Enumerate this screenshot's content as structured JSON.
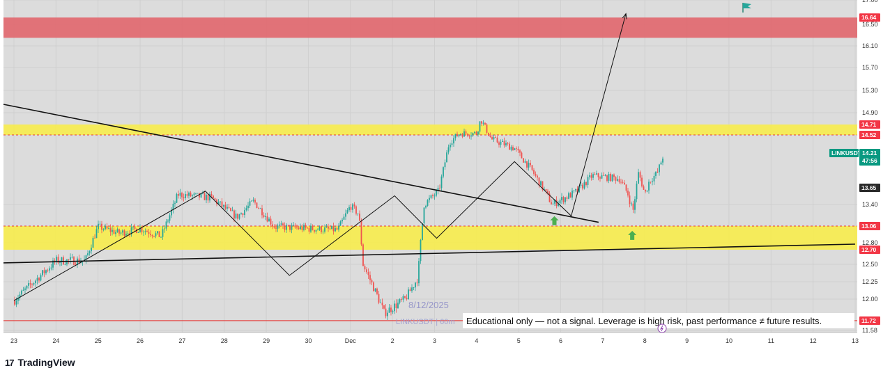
{
  "brand": {
    "logo_text": "TradingView",
    "logo_mark": "17"
  },
  "watermark": {
    "date": "8/12/2025",
    "symbol": "LINKUSDT | 60m"
  },
  "disclaimer": "Educational only — not a signal. Leverage is high risk, past performance ≠ future results.",
  "colors": {
    "background": "#dcdcdc",
    "red_zone": "#e06c72",
    "yellow_zone": "#f7ec4c",
    "up": "#26a69a",
    "down": "#ef5350",
    "line": "#111111",
    "tag_red": "#f23645",
    "tag_teal": "#089981",
    "tag_dark": "#2a2a2a",
    "arrow_green": "#4caf50",
    "flag": "#26a69a"
  },
  "chart_data": {
    "type": "candlestick",
    "symbol": "LINKUSDT",
    "timeframe": "60m",
    "x_ticks": [
      "23",
      "24",
      "25",
      "26",
      "27",
      "28",
      "29",
      "30",
      "Dec",
      "2",
      "3",
      "4",
      "5",
      "6",
      "7",
      "8",
      "9",
      "10",
      "11",
      "12",
      "13"
    ],
    "y_ticks": [
      17.0,
      16.5,
      16.1,
      15.7,
      15.3,
      14.9,
      13.4,
      12.8,
      12.5,
      12.25,
      12.0,
      11.58
    ],
    "y_tick_labels": [
      "17.00",
      "16.50",
      "16.10",
      "15.70",
      "15.30",
      "14.90",
      "13.40",
      "12.80",
      "12.50",
      "12.25",
      "12.00",
      "11.58"
    ],
    "price_tags": [
      {
        "label": "16.64",
        "value": 16.64,
        "style": "red"
      },
      {
        "label": "14.71",
        "value": 14.71,
        "style": "red"
      },
      {
        "label": "14.52",
        "value": 14.52,
        "style": "red"
      },
      {
        "label": "13.65",
        "value": 13.65,
        "style": "dark"
      },
      {
        "label": "13.06",
        "value": 13.06,
        "style": "red"
      },
      {
        "label": "12.70",
        "value": 12.7,
        "style": "red"
      },
      {
        "label": "11.72",
        "value": 11.72,
        "style": "red"
      }
    ],
    "current_price": {
      "symbol": "LINKUSDT",
      "price": "14.21",
      "countdown": "47:56",
      "value": 14.21
    },
    "zones": [
      {
        "kind": "supply",
        "low": 16.25,
        "high": 16.64
      },
      {
        "kind": "resistance",
        "low": 14.52,
        "high": 14.71
      },
      {
        "kind": "support",
        "low": 12.7,
        "high": 13.06
      }
    ],
    "dashed_levels": [
      14.52,
      13.06
    ],
    "solid_levels": [
      11.72
    ],
    "trendlines": [
      {
        "from": [
          "23",
          15.05
        ],
        "to": [
          "6.9",
          13.12
        ]
      },
      {
        "from": [
          "23",
          12.52
        ],
        "to": [
          "13",
          12.78
        ]
      }
    ],
    "projection_path": [
      [
        "23",
        11.98
      ],
      [
        "27.55",
        13.6
      ],
      [
        "29.55",
        12.34
      ],
      [
        "2.05",
        13.53
      ],
      [
        "3.05",
        12.87
      ],
      [
        "4.9",
        14.08
      ],
      [
        "6.25",
        13.22
      ],
      [
        "7.55",
        16.72
      ]
    ],
    "signal_arrows": [
      [
        "5.85",
        13.14
      ],
      [
        "7.7",
        12.91
      ]
    ],
    "key_points": [
      [
        "23",
        11.98
      ],
      [
        "24",
        12.55
      ],
      [
        "24.7",
        12.55
      ],
      [
        "25",
        13.05
      ],
      [
        "25.5",
        12.95
      ],
      [
        "26",
        13.02
      ],
      [
        "26.5",
        12.9
      ],
      [
        "26.9",
        13.55
      ],
      [
        "27.7",
        13.5
      ],
      [
        "28.3",
        13.2
      ],
      [
        "28.7",
        13.45
      ],
      [
        "29.2",
        13.05
      ],
      [
        "30",
        13.02
      ],
      [
        "30.7",
        13.0
      ],
      [
        "31.0",
        13.38
      ],
      [
        "31.2",
        13.25
      ],
      [
        "31.3",
        12.5
      ],
      [
        "31.6",
        12.1
      ],
      [
        "1.8",
        11.82
      ],
      [
        "2.3",
        12.0
      ],
      [
        "2.6",
        12.3
      ],
      [
        "2.75",
        13.4
      ],
      [
        "3.1",
        13.6
      ],
      [
        "3.35",
        14.4
      ],
      [
        "3.6",
        14.55
      ],
      [
        "4.0",
        14.55
      ],
      [
        "4.1",
        14.8
      ],
      [
        "4.35",
        14.45
      ],
      [
        "4.9",
        14.3
      ],
      [
        "5.3",
        13.95
      ],
      [
        "5.8",
        13.4
      ],
      [
        "6.4",
        13.6
      ],
      [
        "6.75",
        13.85
      ],
      [
        "7.4",
        13.8
      ],
      [
        "7.6",
        13.55
      ],
      [
        "7.72",
        13.3
      ],
      [
        "7.85",
        13.9
      ],
      [
        "8.0",
        13.55
      ],
      [
        "8.1",
        13.75
      ],
      [
        "8.3",
        13.9
      ],
      [
        "8.45",
        14.21
      ]
    ]
  }
}
